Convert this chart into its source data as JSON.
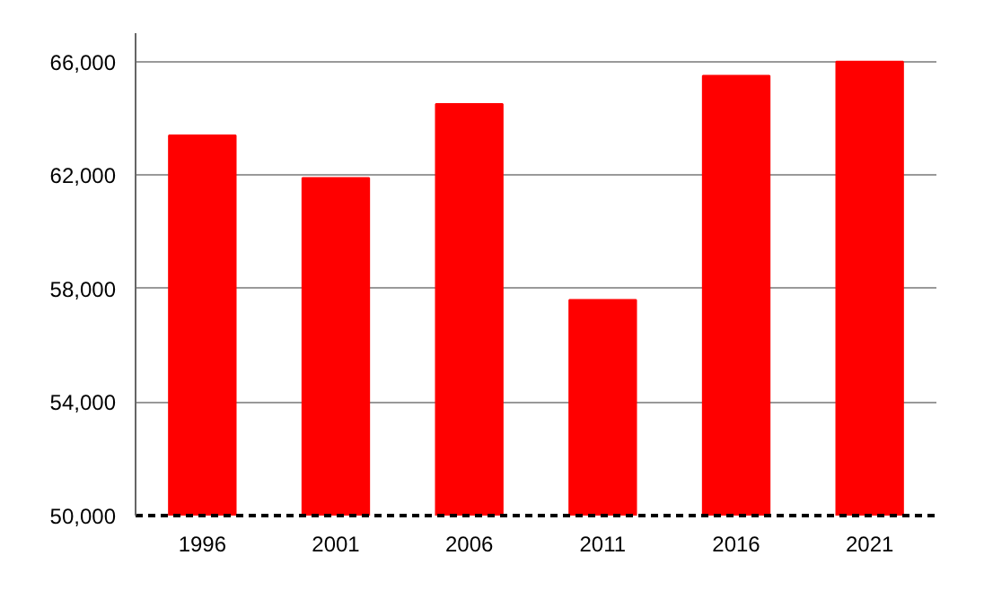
{
  "chart_data": {
    "type": "bar",
    "categories": [
      "1996",
      "2001",
      "2006",
      "2011",
      "2016",
      "2021"
    ],
    "values": [
      63400,
      61900,
      64500,
      57600,
      65500,
      66000
    ],
    "color": "#ff0000",
    "ylim": [
      50000,
      67000
    ],
    "yticks": [
      {
        "value": 50000,
        "label": "50,000"
      },
      {
        "value": 54000,
        "label": "54,000"
      },
      {
        "value": 58000,
        "label": "58,000"
      },
      {
        "value": 62000,
        "label": "62,000"
      },
      {
        "value": 66000,
        "label": "66,000"
      }
    ],
    "grid": "y"
  }
}
